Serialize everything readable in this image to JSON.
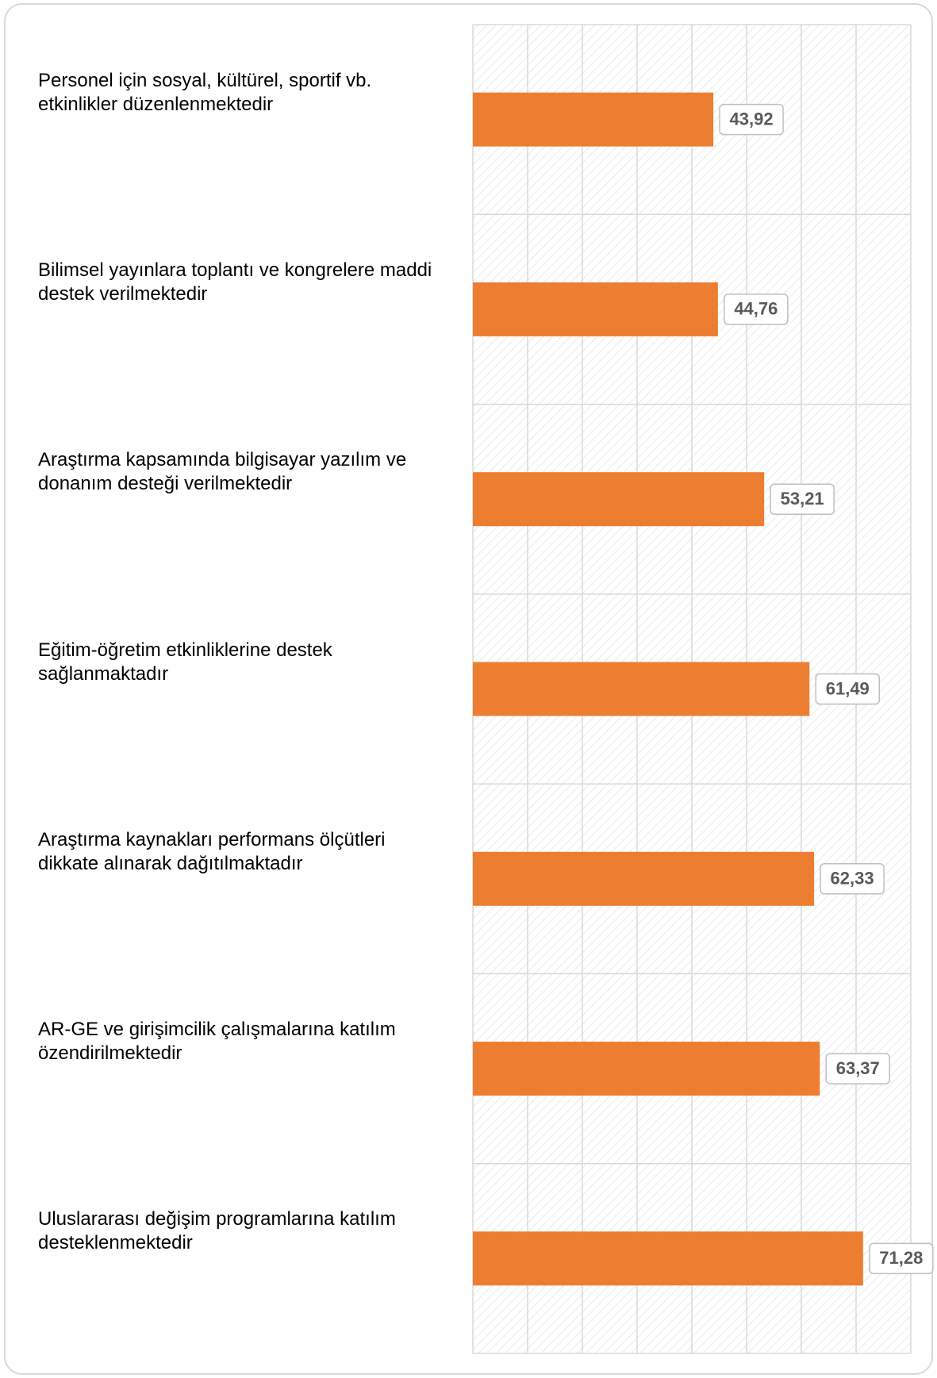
{
  "chart_data": {
    "type": "barh",
    "categories": [
      "Personel için sosyal, kültürel, sportif vb. etkinlikler düzenlenmektedir",
      "Bilimsel yayınlara toplantı ve kongrelere maddi destek verilmektedir",
      "Araştırma kapsamında bilgisayar yazılım ve donanım desteği verilmektedir",
      "Eğitim-öğretim etkinliklerine destek sağlanmaktadır",
      "Araştırma kaynakları performans ölçütleri dikkate alınarak dağıtılmaktadır",
      "AR-GE ve girişimcilik çalışmalarına katılım özendirilmektedir",
      "Uluslararası değişim programlarına katılım desteklenmektedir"
    ],
    "values": [
      43.92,
      44.76,
      53.21,
      61.49,
      62.33,
      63.37,
      71.28
    ],
    "value_labels": [
      "43,92",
      "44,76",
      "53,21",
      "61,49",
      "62,33",
      "63,37",
      "71,28"
    ],
    "color": "#ed7d31",
    "xlim": [
      0,
      80
    ],
    "xticks": [
      0,
      10,
      20,
      30,
      40,
      50,
      60,
      70,
      80
    ],
    "grid": true
  }
}
